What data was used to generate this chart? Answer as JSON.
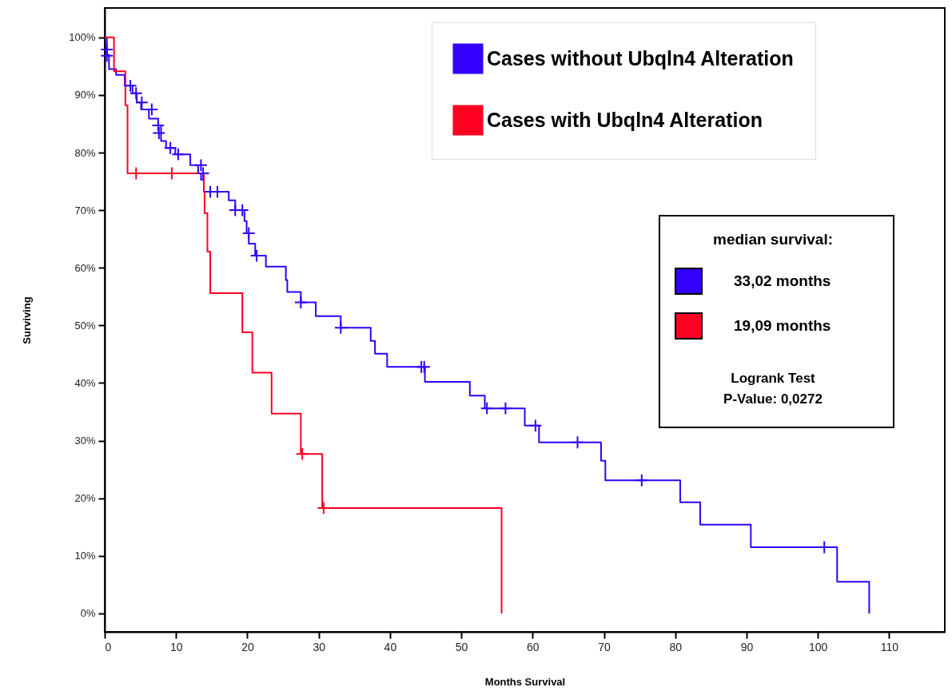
{
  "chart_data": {
    "type": "step",
    "xlabel": "Months Survival",
    "ylabel": "Surviving",
    "xlim": [
      0,
      117.8
    ],
    "ylim": [
      -3.2,
      105.1
    ],
    "xticks": [
      0,
      10,
      20,
      30,
      40,
      50,
      60,
      70,
      80,
      90,
      100,
      110
    ],
    "yticks": [
      {
        "value": 0,
        "label": "0%"
      },
      {
        "value": 10,
        "label": "10%"
      },
      {
        "value": 20,
        "label": "20%"
      },
      {
        "value": 30,
        "label": "30%"
      },
      {
        "value": 40,
        "label": "40%"
      },
      {
        "value": 50,
        "label": "50%"
      },
      {
        "value": 60,
        "label": "60%"
      },
      {
        "value": 70,
        "label": "70%"
      },
      {
        "value": 80,
        "label": "80%"
      },
      {
        "value": 90,
        "label": "90%"
      },
      {
        "value": 100,
        "label": "100%"
      }
    ],
    "grid": false,
    "legend": "top right",
    "annotations": [
      "median survival:",
      "33,02 months",
      "19,09 months",
      "Logrank Test",
      "P-Value: 0,0272"
    ],
    "series": [
      {
        "name": "Cases without Ubqln4 Alteration",
        "color": "#3300ff",
        "x": [
          0,
          0.3,
          0.6,
          1.6,
          2.8,
          3.9,
          4.5,
          5.1,
          6.2,
          7.5,
          7.9,
          8.6,
          9.9,
          12.0,
          13.1,
          13.5,
          13.9,
          17.4,
          18.3,
          19.6,
          19.9,
          20.2,
          21.1,
          22.6,
          25.4,
          25.6,
          27.5,
          29.6,
          33.1,
          37.3,
          37.9,
          39.6,
          44.9,
          51.2,
          53.3,
          58.9,
          60.9,
          69.6,
          70.2,
          80.7,
          83.5,
          90.6,
          102.7,
          107.2
        ],
        "values": [
          100,
          97,
          94.5,
          93.5,
          91.6,
          90.3,
          88.7,
          87.5,
          85.9,
          84.7,
          82.0,
          80.8,
          79.7,
          77.8,
          76.4,
          75.3,
          73.2,
          71.7,
          70.0,
          68.1,
          66.0,
          64.2,
          62.1,
          60.2,
          57.9,
          55.8,
          54.0,
          51.6,
          49.6,
          47.3,
          45.1,
          42.8,
          40.2,
          37.8,
          35.6,
          32.6,
          29.7,
          26.5,
          23.1,
          19.3,
          15.4,
          11.5,
          5.5,
          0
        ]
      },
      {
        "name": "Cases with Ubqln4 Alteration",
        "color": "#ff0022",
        "x": [
          0,
          1.3,
          2.9,
          3.2,
          13.9,
          14.0,
          14.4,
          14.8,
          19.3,
          20.7,
          23.4,
          27.5,
          30.5,
          55.65
        ],
        "values": [
          100,
          94.1,
          88.2,
          76.4,
          73.2,
          69.5,
          62.8,
          55.6,
          48.8,
          41.8,
          34.7,
          27.7,
          18.3,
          0
        ]
      },
      {
        "color": "#3300ff",
        "type": "scatter",
        "marker": "cross",
        "x": [
          0.3,
          0.3,
          3.6,
          4.4,
          5.2,
          6.6,
          7.5,
          7.6,
          9.2,
          10.3,
          13.5,
          13.8,
          14.8,
          15.8,
          18.3,
          19.3,
          20.2,
          21.3,
          27.5,
          33.1,
          44.4,
          44.8,
          53.6,
          56.2,
          60.4,
          66.3,
          75.3,
          100.9
        ],
        "values": [
          97.9,
          96.8,
          91.6,
          90.3,
          88.7,
          87.5,
          84.7,
          83.4,
          80.8,
          79.7,
          77.8,
          76.4,
          73.2,
          73.2,
          70.0,
          70.0,
          66.0,
          62.1,
          54.0,
          49.6,
          42.8,
          42.8,
          35.6,
          35.6,
          32.6,
          29.7,
          23.1,
          11.5
        ]
      },
      {
        "color": "#ff0022",
        "type": "scatter",
        "marker": "cross",
        "x": [
          4.4,
          9.4,
          27.7,
          30.7
        ],
        "values": [
          76.4,
          76.4,
          27.7,
          18.3
        ]
      }
    ]
  }
}
